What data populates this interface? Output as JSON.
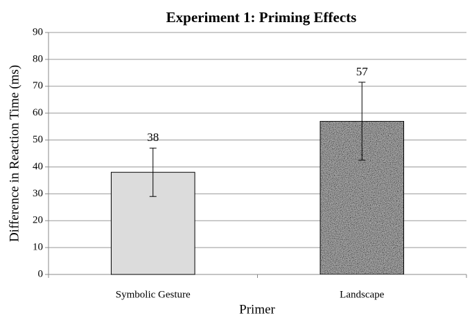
{
  "chart_data": {
    "type": "bar",
    "title": "Experiment 1: Priming Effects",
    "categories": [
      "Symbolic Gesture",
      "Landscape"
    ],
    "values": [
      38,
      57
    ],
    "errors": [
      9,
      14.5
    ],
    "colors": [
      "#dcdcdc",
      "#a9a9a9"
    ],
    "xlabel": "Primer",
    "ylabel": "Difference in Reaction Time (ms)",
    "ylim": [
      0,
      90
    ],
    "yticks": [
      0,
      10,
      20,
      30,
      40,
      50,
      60,
      70,
      80,
      90
    ],
    "grid": true
  }
}
